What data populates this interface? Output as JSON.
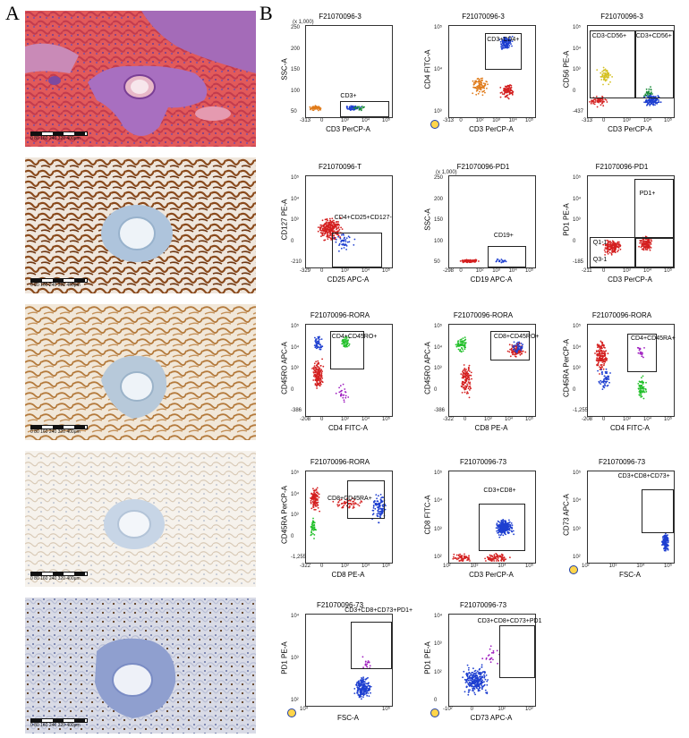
{
  "panels": {
    "a": "A",
    "b": "B"
  },
  "micrographs": [
    {
      "stain": "he",
      "scale_text": "0   80  160 240 320 400μm"
    },
    {
      "stain": "ihc_strong_brown",
      "scale_text": "0   80  160 240 320 400μm"
    },
    {
      "stain": "ihc_moderate_brown",
      "scale_text": "0   80  160 240 320 400μm"
    },
    {
      "stain": "ihc_faint",
      "scale_text": "0   80  160 240 320 400μm"
    },
    {
      "stain": "ihc_scattered_nuclear",
      "scale_text": "0   80  160 240 320 400μm"
    }
  ],
  "flow_plots": [
    {
      "title": "F21070096-3",
      "xlabel": "CD3 PerCP-A",
      "ylabel": "SSC-A",
      "ytop": "(x 1,000)",
      "xticks": [
        "-313",
        "0",
        "10³",
        "10⁴",
        "10⁵"
      ],
      "yticks": [
        "250",
        "200",
        "150",
        "100",
        "50"
      ],
      "gates": [
        "CD3+"
      ],
      "cluster": "low"
    },
    {
      "title": "F21070096-3",
      "xlabel": "CD3 PerCP-A",
      "ylabel": "CD4 FITC-A",
      "xticks": [
        "-313",
        "0",
        "10²",
        "10³",
        "10⁴",
        "10⁵"
      ],
      "yticks": [
        "10⁵",
        "10⁴",
        "10³"
      ],
      "gates": [
        "CD3+CD4+"
      ],
      "cluster": "cd4"
    },
    {
      "title": "F21070096-3",
      "xlabel": "CD3 PerCP-A",
      "ylabel": "CD56 PE-A",
      "xticks": [
        "-313",
        "0",
        "10³",
        "10⁴",
        "10⁵"
      ],
      "yticks": [
        "10⁵",
        "10⁴",
        "10³",
        "0",
        "-437"
      ],
      "gates": [
        "CD3-CD56+",
        "CD3+CD56+"
      ],
      "cluster": "cd56"
    },
    {
      "title": "F21070096-T",
      "xlabel": "CD25 APC-A",
      "ylabel": "CD127 PE-A",
      "xticks": [
        "-329",
        "0",
        "10³",
        "10⁴",
        "10⁵"
      ],
      "yticks": [
        "10⁵",
        "10⁴",
        "10³",
        "0",
        "-210"
      ],
      "gates": [
        "CD4+CD25+CD127-"
      ],
      "cluster": "treg"
    },
    {
      "title": "F21070096-PD1",
      "xlabel": "CD19 APC-A",
      "ylabel": "SSC-A",
      "ytop": "(x 1,000)",
      "xticks": [
        "-298",
        "0",
        "10²",
        "10³",
        "10⁴",
        "10⁵"
      ],
      "yticks": [
        "250",
        "200",
        "150",
        "100",
        "50"
      ],
      "gates": [
        "CD19+"
      ],
      "cluster": "low_red"
    },
    {
      "title": "F21070096-PD1",
      "xlabel": "CD3 PerCP-A",
      "ylabel": "PD1 PE-A",
      "xticks": [
        "-211",
        "0",
        "10³",
        "10⁴",
        "10⁵"
      ],
      "yticks": [
        "10⁵",
        "10⁴",
        "10³",
        "0",
        "-185"
      ],
      "gates": [
        "PD1+",
        "Q1-1",
        "Q3-1"
      ],
      "cluster": "pd1"
    },
    {
      "title": "F21070096-RORA",
      "xlabel": "CD4 FITC-A",
      "ylabel": "CD45RO APC-A",
      "xticks": [
        "-208",
        "0",
        "10³",
        "10⁴",
        "10⁵"
      ],
      "yticks": [
        "10⁵",
        "10⁴",
        "10³",
        "0",
        "-386"
      ],
      "gates": [
        "CD4+CD45RO+"
      ],
      "cluster": "rora1"
    },
    {
      "title": "F21070096-RORA",
      "xlabel": "CD8 PE-A",
      "ylabel": "CD45RO APC-A",
      "xticks": [
        "-322",
        "0",
        "10³",
        "10⁴",
        "10⁵"
      ],
      "yticks": [
        "10⁵",
        "10⁴",
        "10³",
        "0",
        "-386"
      ],
      "gates": [
        "CD8+CD45RO+"
      ],
      "cluster": "rora2"
    },
    {
      "title": "F21070096-RORA",
      "xlabel": "CD4 FITC-A",
      "ylabel": "CD45RA PerCP-A",
      "xticks": [
        "-208",
        "0",
        "10³",
        "10⁴",
        "10⁵"
      ],
      "yticks": [
        "10⁵",
        "10⁴",
        "10³",
        "0",
        "-1,255"
      ],
      "gates": [
        "CD4+CD45RA+"
      ],
      "cluster": "rora3"
    },
    {
      "title": "F21070096-RORA",
      "xlabel": "CD8 PE-A",
      "ylabel": "CD45RA PerCP-A",
      "xticks": [
        "-322",
        "0",
        "10³",
        "10⁴",
        "10⁵"
      ],
      "yticks": [
        "10⁵",
        "10⁴",
        "10³",
        "0",
        "-1,255"
      ],
      "gates": [
        "CD8+CD45RA+"
      ],
      "cluster": "rora4"
    },
    {
      "title": "F21070096-73",
      "xlabel": "CD3 PerCP-A",
      "ylabel": "CD8 FITC-A",
      "xticks": [
        "10²",
        "10³",
        "10⁴",
        "10⁵"
      ],
      "yticks": [
        "10⁵",
        "10⁴",
        "10³",
        "10²"
      ],
      "gates": [
        "CD3+CD8+"
      ],
      "cluster": "cd8"
    },
    {
      "title": "F21070096-73",
      "xlabel": "FSC-A",
      "ylabel": "CD73 APC-A",
      "xticks": [
        "10²",
        "10³",
        "10⁴",
        "10⁵"
      ],
      "yticks": [
        "10⁵",
        "10⁴",
        "10³",
        "10²"
      ],
      "gates": [
        "CD3+CD8+CD73+"
      ],
      "cluster": "fsc"
    },
    {
      "title": "F21070096-73",
      "xlabel": "FSC-A",
      "ylabel": "PD1 PE-A",
      "xticks": [
        "10⁴",
        "10⁵"
      ],
      "yticks": [
        "10⁴",
        "10³",
        "10²"
      ],
      "gates": [
        "CD3+CD8+CD73+PD1+"
      ],
      "cluster": "fsc2"
    },
    {
      "title": "F21070096-73",
      "xlabel": "CD73 APC-A",
      "ylabel": "PD1 PE-A",
      "xticks": [
        "-10²",
        "0",
        "10²",
        "10³"
      ],
      "yticks": [
        "10⁴",
        "10³",
        "10²",
        "0"
      ],
      "gates": [
        "CD3+CD8+CD73+PD1"
      ],
      "cluster": "cd73"
    }
  ]
}
